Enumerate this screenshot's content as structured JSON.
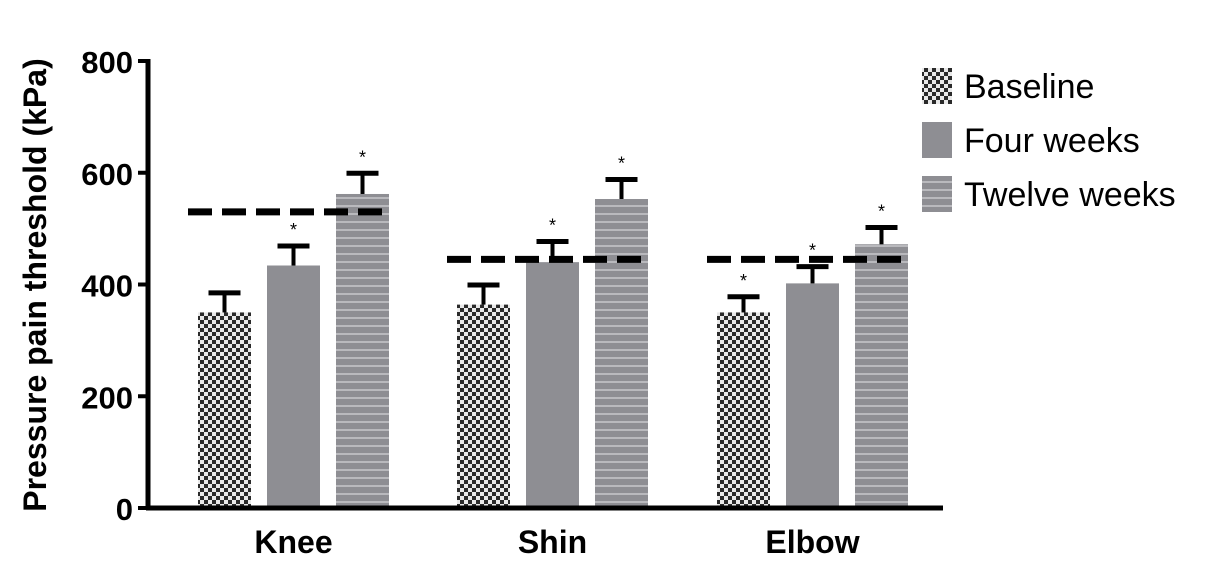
{
  "chart_data": {
    "type": "bar",
    "ylabel": "Pressure pain threshold (kPa)",
    "xlabel": "",
    "ylim": [
      0,
      800
    ],
    "yticks": [
      "0",
      "200",
      "400",
      "600",
      "800"
    ],
    "categories": [
      "Knee",
      "Shin",
      "Elbow"
    ],
    "series": [
      {
        "name": "Baseline",
        "values": [
          350,
          364,
          350
        ],
        "errors": [
          35,
          35,
          28
        ],
        "significant": [
          false,
          false,
          true
        ],
        "pattern": "checker",
        "color": "#555555"
      },
      {
        "name": "Four weeks",
        "values": [
          434,
          440,
          402
        ],
        "errors": [
          35,
          37,
          30
        ],
        "significant": [
          true,
          true,
          true
        ],
        "pattern": "solid",
        "color": "#8e8e93"
      },
      {
        "name": "Twelve weeks",
        "values": [
          562,
          553,
          472
        ],
        "errors": [
          37,
          35,
          30
        ],
        "significant": [
          true,
          true,
          true
        ],
        "pattern": "stripes",
        "color": "#8a8a8f"
      }
    ],
    "reference_lines": [
      530,
      445,
      445
    ],
    "significance_marker": "*",
    "legend_position": "top-right",
    "grid": false
  }
}
